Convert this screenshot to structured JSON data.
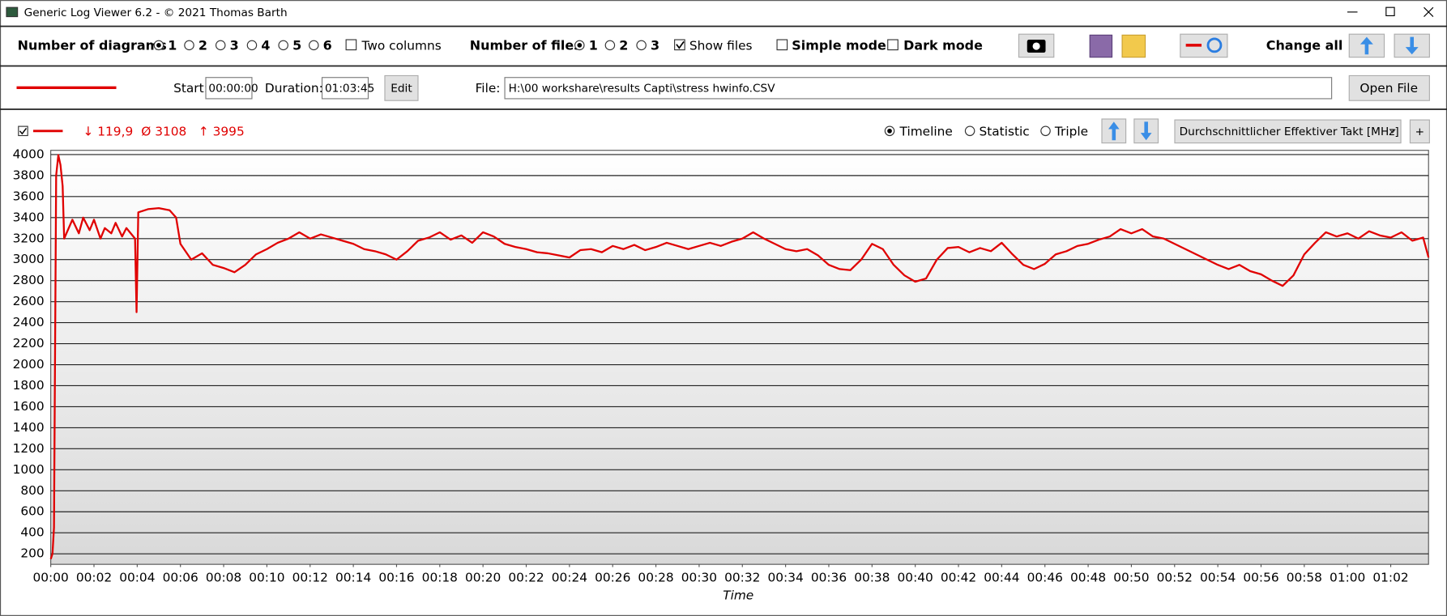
{
  "window": {
    "title": "Generic Log Viewer 6.2 - © 2021 Thomas Barth"
  },
  "toolbar": {
    "diagrams_label": "Number of diagrams",
    "diagram_options": [
      "1",
      "2",
      "3",
      "4",
      "5",
      "6"
    ],
    "two_columns": "Two columns",
    "files_label": "Number of files",
    "file_options": [
      "1",
      "2",
      "3"
    ],
    "show_files": "Show files",
    "simple_mode": "Simple mode",
    "dark_mode": "Dark mode",
    "change_all": "Change all"
  },
  "file_row": {
    "start_label": "Start:",
    "start": "00:00:00",
    "duration_label": "Duration:",
    "duration": "01:03:45",
    "edit": "Edit",
    "file_label": "File:",
    "file_path": "H:\\00 workshare\\results Capti\\stress hwinfo.CSV",
    "open_file": "Open File"
  },
  "stats": {
    "min": "↓ 119,9",
    "avg": "Ø 3108",
    "max": "↑ 3995"
  },
  "view": {
    "timeline": "Timeline",
    "statistic": "Statistic",
    "triple": "Triple",
    "channel": "Durchschnittlicher Effektiver Takt [MHz]",
    "add": "+"
  },
  "chart_data": {
    "type": "line",
    "x_label": "Time",
    "color": "#e00000",
    "grid": true,
    "xlim": [
      0,
      63.75
    ],
    "ylim": [
      100,
      4040
    ],
    "yticks": [
      200,
      400,
      600,
      800,
      1000,
      1200,
      1400,
      1600,
      1800,
      2000,
      2200,
      2400,
      2600,
      2800,
      3000,
      3200,
      3400,
      3600,
      3800,
      4000
    ],
    "xticks": [
      {
        "value": 0,
        "label": "00:00"
      },
      {
        "value": 2,
        "label": "00:02"
      },
      {
        "value": 4,
        "label": "00:04"
      },
      {
        "value": 6,
        "label": "00:06"
      },
      {
        "value": 8,
        "label": "00:08"
      },
      {
        "value": 10,
        "label": "00:10"
      },
      {
        "value": 12,
        "label": "00:12"
      },
      {
        "value": 14,
        "label": "00:14"
      },
      {
        "value": 16,
        "label": "00:16"
      },
      {
        "value": 18,
        "label": "00:18"
      },
      {
        "value": 20,
        "label": "00:20"
      },
      {
        "value": 22,
        "label": "00:22"
      },
      {
        "value": 24,
        "label": "00:24"
      },
      {
        "value": 26,
        "label": "00:26"
      },
      {
        "value": 28,
        "label": "00:28"
      },
      {
        "value": 30,
        "label": "00:30"
      },
      {
        "value": 32,
        "label": "00:32"
      },
      {
        "value": 34,
        "label": "00:34"
      },
      {
        "value": 36,
        "label": "00:36"
      },
      {
        "value": 38,
        "label": "00:38"
      },
      {
        "value": 40,
        "label": "00:40"
      },
      {
        "value": 42,
        "label": "00:42"
      },
      {
        "value": 44,
        "label": "00:44"
      },
      {
        "value": 46,
        "label": "00:46"
      },
      {
        "value": 48,
        "label": "00:48"
      },
      {
        "value": 50,
        "label": "00:50"
      },
      {
        "value": 52,
        "label": "00:52"
      },
      {
        "value": 54,
        "label": "00:54"
      },
      {
        "value": 56,
        "label": "00:56"
      },
      {
        "value": 58,
        "label": "00:58"
      },
      {
        "value": 60,
        "label": "01:00"
      },
      {
        "value": 62,
        "label": "01:02"
      }
    ],
    "x": [
      0,
      0.08,
      0.15,
      0.25,
      0.35,
      0.45,
      0.55,
      0.62,
      1.0,
      1.3,
      1.5,
      1.8,
      2.0,
      2.3,
      2.5,
      2.8,
      3.0,
      3.3,
      3.5,
      3.9,
      3.97,
      4.05,
      4.5,
      5.0,
      5.5,
      5.8,
      6.0,
      6.5,
      7.0,
      7.5,
      8.0,
      8.5,
      9.0,
      9.5,
      10.0,
      10.5,
      11.0,
      11.5,
      12.0,
      12.5,
      13.0,
      13.5,
      14.0,
      14.5,
      15.0,
      15.5,
      16.0,
      16.5,
      17.0,
      17.5,
      18.0,
      18.5,
      19.0,
      19.5,
      20.0,
      20.5,
      21.0,
      21.5,
      22.0,
      22.5,
      23.0,
      23.5,
      24.0,
      24.5,
      25.0,
      25.5,
      26.0,
      26.5,
      27.0,
      27.5,
      28.0,
      28.5,
      29.0,
      29.5,
      30.0,
      30.5,
      31.0,
      31.5,
      32.0,
      32.5,
      33.0,
      33.5,
      34.0,
      34.5,
      35.0,
      35.5,
      36.0,
      36.5,
      37.0,
      37.5,
      38.0,
      38.5,
      39.0,
      39.5,
      40.0,
      40.5,
      41.0,
      41.5,
      42.0,
      42.5,
      43.0,
      43.5,
      44.0,
      44.5,
      45.0,
      45.5,
      46.0,
      46.5,
      47.0,
      47.5,
      48.0,
      48.5,
      49.0,
      49.5,
      50.0,
      50.5,
      51.0,
      51.5,
      52.0,
      52.5,
      53.0,
      53.5,
      54.0,
      54.5,
      55.0,
      55.5,
      56.0,
      56.5,
      57.0,
      57.5,
      58.0,
      58.5,
      59.0,
      59.5,
      60.0,
      60.5,
      61.0,
      61.5,
      62.0,
      62.5,
      63.0,
      63.5,
      63.75
    ],
    "values": [
      150,
      200,
      450,
      3800,
      3995,
      3900,
      3700,
      3200,
      3380,
      3250,
      3400,
      3280,
      3380,
      3200,
      3300,
      3250,
      3350,
      3220,
      3300,
      3200,
      2500,
      3450,
      3480,
      3490,
      3470,
      3400,
      3150,
      3000,
      3060,
      2950,
      2920,
      2880,
      2950,
      3050,
      3100,
      3160,
      3200,
      3260,
      3200,
      3240,
      3210,
      3180,
      3150,
      3100,
      3080,
      3050,
      3000,
      3080,
      3180,
      3210,
      3260,
      3190,
      3230,
      3160,
      3260,
      3220,
      3150,
      3120,
      3100,
      3070,
      3060,
      3040,
      3020,
      3090,
      3100,
      3070,
      3130,
      3100,
      3140,
      3090,
      3120,
      3160,
      3130,
      3100,
      3130,
      3160,
      3130,
      3170,
      3200,
      3260,
      3200,
      3150,
      3100,
      3080,
      3100,
      3040,
      2950,
      2910,
      2900,
      3000,
      3150,
      3100,
      2950,
      2850,
      2790,
      2820,
      3000,
      3110,
      3120,
      3070,
      3110,
      3080,
      3160,
      3050,
      2950,
      2910,
      2960,
      3050,
      3080,
      3130,
      3150,
      3190,
      3220,
      3290,
      3250,
      3290,
      3220,
      3200,
      3150,
      3100,
      3050,
      3000,
      2950,
      2910,
      2950,
      2890,
      2860,
      2800,
      2750,
      2850,
      3050,
      3160,
      3260,
      3220,
      3250,
      3200,
      3270,
      3230,
      3210,
      3260,
      3180,
      3210,
      3020
    ]
  }
}
